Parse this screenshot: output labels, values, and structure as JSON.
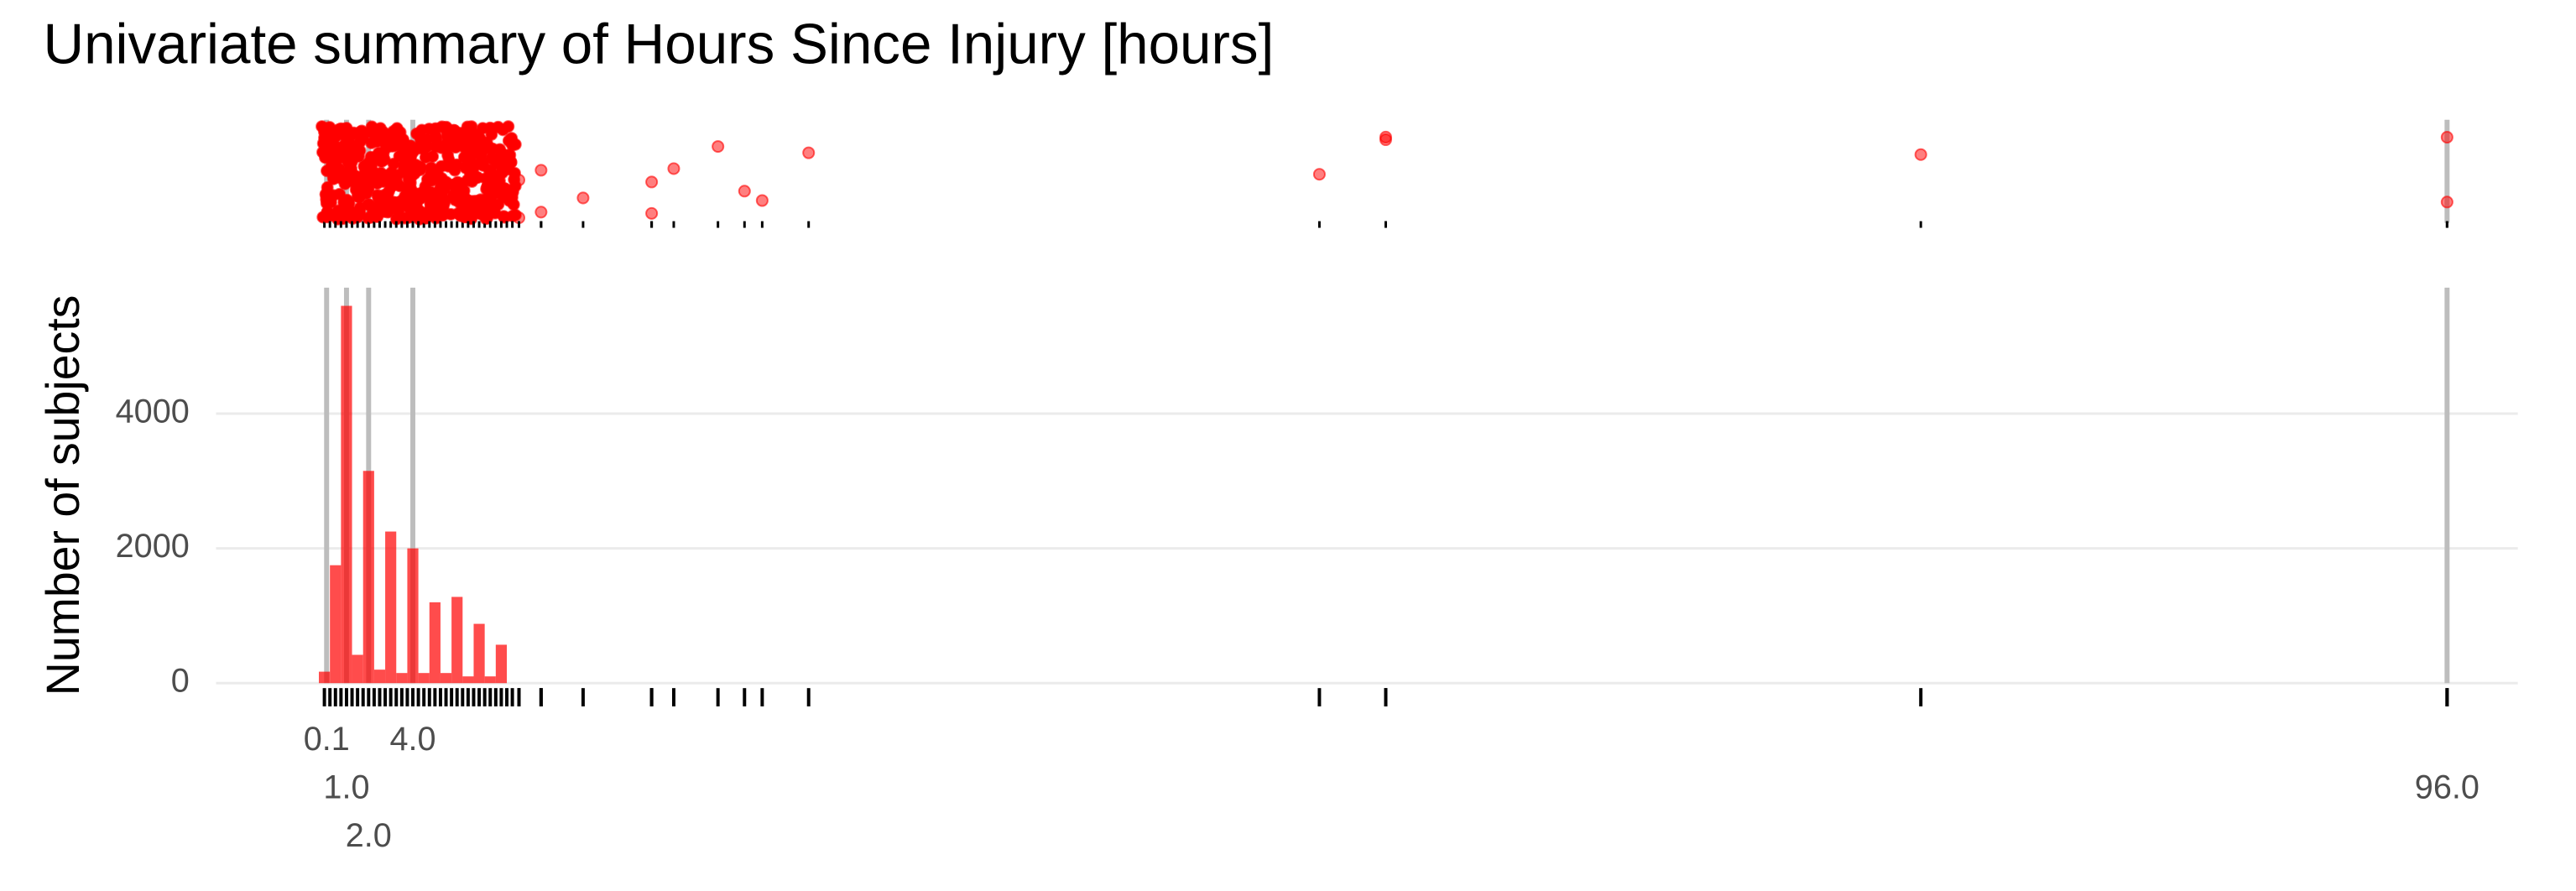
{
  "chart_data": {
    "type": "histogram",
    "title": "Univariate summary of Hours Since Injury [hours]",
    "ylabel": "Number of subjects",
    "bins": [
      -0.25,
      0.25,
      0.75,
      1.25,
      1.75,
      2.25,
      2.75,
      3.25,
      3.75,
      4.25,
      4.75,
      5.25,
      5.75,
      6.25,
      6.75,
      7.25,
      7.75,
      8.25
    ],
    "values": [
      170,
      1750,
      5600,
      420,
      3150,
      200,
      2250,
      150,
      2000,
      150,
      1200,
      150,
      1280,
      100,
      880,
      100,
      570
    ],
    "color": "#ff0000",
    "xlim": [
      -4.9,
      99.2
    ],
    "ylim": [
      0,
      5870
    ],
    "xticks": [
      0.1,
      {
        "value": 1,
        "label": "1.0"
      },
      {
        "value": 2,
        "label": "2.0"
      },
      {
        "value": 4,
        "label": "4.0"
      },
      {
        "value": 96,
        "label": "96.0"
      }
    ],
    "yticks": [
      0,
      2000,
      4000
    ],
    "grid": true,
    "strip": {
      "color": "#ff0000",
      "values": [
        0,
        0.25,
        0.5,
        0.75,
        1,
        1.25,
        1.5,
        1.75,
        2,
        2.25,
        2.5,
        2.75,
        3,
        3.25,
        3.5,
        3.75,
        4,
        4.25,
        4.5,
        4.75,
        5,
        5.25,
        5.5,
        5.75,
        6,
        6.25,
        6.5,
        6.75,
        7,
        7.25,
        7.5,
        7.75,
        8,
        8.25,
        8.5,
        8.8,
        8.8,
        9.8,
        9.8,
        11.7,
        14.8,
        14.8,
        15.8,
        17.8,
        19,
        19.8,
        21.9,
        45,
        48,
        48,
        72.2,
        96,
        96
      ]
    }
  }
}
